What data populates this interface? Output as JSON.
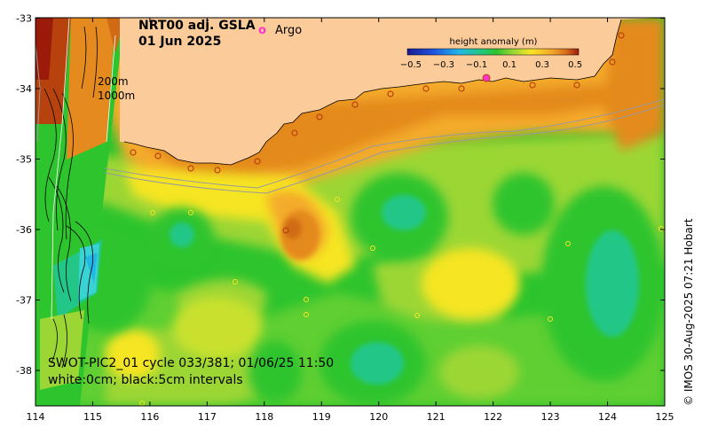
{
  "map": {
    "title_line1": "NRT00 adj. GSLA",
    "title_line2": "01 Jun 2025",
    "legend_argo_symbol": "o",
    "legend_argo_label": "Argo",
    "isobath_label_1": "200m",
    "isobath_label_2": "1000m",
    "swot_line1": "SWOT-PIC2_01 cycle 033/381; 01/06/25 11:50",
    "swot_line2": "white:0cm; black:5cm intervals",
    "credit": "© IMOS 30-Aug-2025 07:21 Hobart",
    "x_ticks": [
      "114",
      "115",
      "116",
      "117",
      "118",
      "119",
      "120",
      "121",
      "122",
      "123",
      "124",
      "125"
    ],
    "y_ticks": [
      "-33",
      "-34",
      "-35",
      "-36",
      "-37",
      "-38"
    ],
    "colorbar": {
      "title": "height anomaly (m)",
      "ticks": [
        "−0.5",
        "−0.3",
        "−0.1",
        "0.1",
        "0.3",
        "0.5"
      ],
      "range": [
        -0.5,
        0.5
      ]
    },
    "colors": {
      "land": "#FCCB9A",
      "orange_high": "#E48A1E",
      "orange_mid": "#F4AA2A",
      "yellow": "#F6E524",
      "lime": "#9CD634",
      "green": "#2DC42E",
      "teal": "#22C788",
      "cyan": "#3AD3D3",
      "brown": "#B8420E",
      "argo": "#FF33CC"
    }
  }
}
